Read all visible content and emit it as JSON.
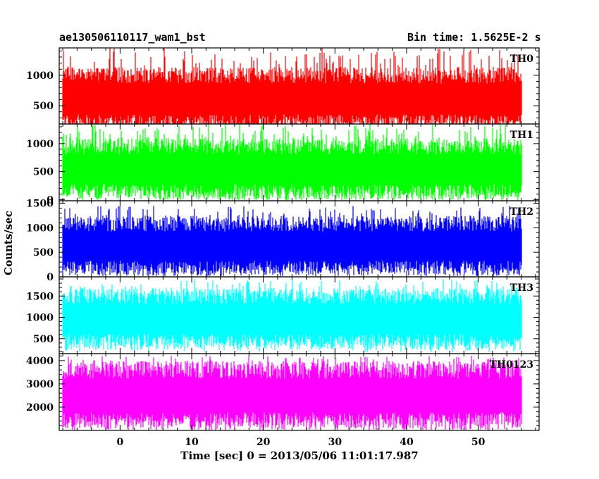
{
  "chart_data": {
    "type": "line",
    "title_left": "ae130506110117_wam1_bst",
    "title_right": "Bin time: 1.5625E-2 s",
    "xlabel": "Time [sec] 0 = 2013/05/06 11:01:17.987",
    "ylabel": "Counts/sec",
    "xlim": [
      -8.5,
      58.5
    ],
    "x_data_range": [
      -8,
      56
    ],
    "xticks": [
      0,
      10,
      20,
      30,
      40,
      50
    ],
    "panels": [
      {
        "name": "TH0",
        "color": "#ff0000",
        "ylim": [
          200,
          1450
        ],
        "yticks": [
          500,
          1000
        ],
        "band": [
          220,
          1000
        ],
        "spike_max": 1450,
        "spike_min": 200
      },
      {
        "name": "TH1",
        "color": "#00ff00",
        "ylim": [
          -20,
          1350
        ],
        "yticks": [
          0,
          500,
          1000
        ],
        "band": [
          130,
          950
        ],
        "spike_max": 1350,
        "spike_min": 20
      },
      {
        "name": "TH2",
        "color": "#0000ff",
        "ylim": [
          0,
          1550
        ],
        "yticks": [
          0,
          500,
          1000,
          1500
        ],
        "band": [
          170,
          1080
        ],
        "spike_max": 1450,
        "spike_min": 50
      },
      {
        "name": "TH3",
        "color": "#00ffff",
        "ylim": [
          150,
          1950
        ],
        "yticks": [
          500,
          1000,
          1500
        ],
        "band": [
          420,
          1500
        ],
        "spike_max": 1900,
        "spike_min": 180
      },
      {
        "name": "TH0123",
        "color": "#ff00ff",
        "ylim": [
          1000,
          4300
        ],
        "yticks": [
          2000,
          3000,
          4000
        ],
        "band": [
          1400,
          3600
        ],
        "spike_max": 4200,
        "spike_min": 1000
      }
    ]
  }
}
